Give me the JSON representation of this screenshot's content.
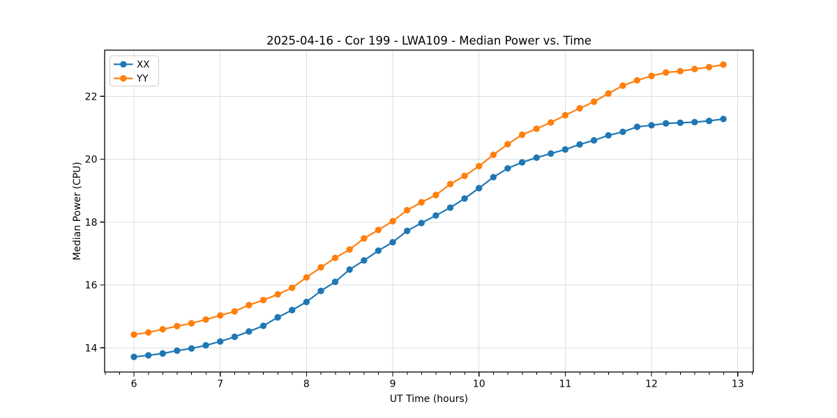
{
  "chart_data": {
    "type": "line",
    "title": "2025-04-16 - Cor 199 - LWA109 - Median Power vs. Time",
    "xlabel": "UT Time (hours)",
    "ylabel": "Median Power (CPU)",
    "xlim": [
      5.66,
      13.18
    ],
    "ylim": [
      13.23,
      23.47
    ],
    "xticks": [
      6,
      7,
      8,
      9,
      10,
      11,
      12,
      13
    ],
    "yticks": [
      14,
      16,
      18,
      20,
      22
    ],
    "x_minor_tick_step": 0.1667,
    "grid": true,
    "legend_position": "upper left",
    "x": [
      6.0,
      6.167,
      6.333,
      6.5,
      6.667,
      6.833,
      7.0,
      7.167,
      7.333,
      7.5,
      7.667,
      7.833,
      8.0,
      8.167,
      8.333,
      8.5,
      8.667,
      8.833,
      9.0,
      9.167,
      9.333,
      9.5,
      9.667,
      9.833,
      10.0,
      10.167,
      10.333,
      10.5,
      10.667,
      10.833,
      11.0,
      11.167,
      11.333,
      11.5,
      11.667,
      11.833,
      12.0,
      12.167,
      12.333,
      12.5,
      12.667,
      12.833
    ],
    "series": [
      {
        "name": "XX",
        "color": "#1f77b4",
        "marker": "o",
        "values": [
          13.71,
          13.76,
          13.82,
          13.91,
          13.98,
          14.08,
          14.2,
          14.35,
          14.52,
          14.7,
          14.97,
          15.2,
          15.46,
          15.81,
          16.1,
          16.49,
          16.78,
          17.09,
          17.36,
          17.72,
          17.97,
          18.21,
          18.46,
          18.75,
          19.08,
          19.43,
          19.71,
          19.9,
          20.05,
          20.18,
          20.31,
          20.47,
          20.6,
          20.76,
          20.87,
          21.03,
          21.08,
          21.14,
          21.16,
          21.18,
          21.22,
          21.28
        ]
      },
      {
        "name": "YY",
        "color": "#ff7f0e",
        "marker": "o",
        "values": [
          14.42,
          14.49,
          14.59,
          14.69,
          14.78,
          14.9,
          15.03,
          15.16,
          15.36,
          15.52,
          15.7,
          15.91,
          16.24,
          16.56,
          16.86,
          17.13,
          17.48,
          17.75,
          18.03,
          18.38,
          18.63,
          18.86,
          19.21,
          19.47,
          19.78,
          20.14,
          20.48,
          20.78,
          20.97,
          21.17,
          21.4,
          21.62,
          21.83,
          22.09,
          22.34,
          22.51,
          22.65,
          22.76,
          22.8,
          22.87,
          22.93,
          23.01
        ]
      }
    ]
  },
  "style": {
    "grid_color": "#dedede",
    "spine_color": "#000000",
    "background": "#ffffff",
    "legend_border": "#cccccc"
  }
}
